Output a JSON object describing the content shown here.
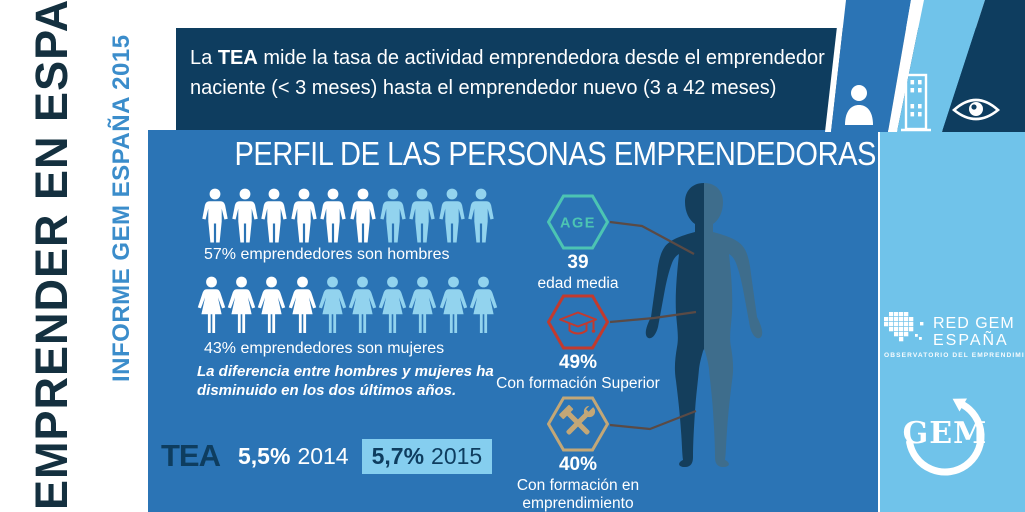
{
  "colors": {
    "navy": "#0e3d5f",
    "panel_blue": "#2b74b5",
    "sky": "#70c3ea",
    "pictogram_active": "#ffffff",
    "pictogram_inactive": "#92d3ee",
    "tea_box": "#85ceef",
    "title_ink": "#14303f",
    "subtitle_blue": "#3b8dcb",
    "connector": "#5a4a45",
    "body_left": "#143e5c",
    "body_right": "#3e6d8c",
    "white": "#ffffff"
  },
  "left_rail": {
    "title": "EMPRENDER EN ESPAÑA",
    "subtitle": "INFORME GEM ESPAÑA 2015"
  },
  "banner": {
    "line1_pre": "La ",
    "line1_bold": "TEA",
    "line1_rest": " mide la tasa de actividad emprendedora desde el emprendedor",
    "line2": "naciente (< 3 meses) hasta el emprendedor nuevo (3 a 42 meses)",
    "icons": [
      "person-bust-icon",
      "building-icon",
      "eye-icon"
    ]
  },
  "panel": {
    "title": "PERFIL DE LAS PERSONAS EMPRENDEDORAS",
    "men": {
      "label": "57% emprendedores son hombres",
      "total": 10,
      "highlighted": 6
    },
    "women": {
      "label": "43% emprendedores son mujeres",
      "total": 10,
      "highlighted": 4
    },
    "note_line1": "La diferencia entre hombres y mujeres ha",
    "note_line2": "disminuido en los dos últimos años.",
    "tea": {
      "label": "TEA",
      "value_2014": "5,5%",
      "year_2014": "2014",
      "value_2015": "5,7%",
      "year_2015": "2015"
    },
    "badges": [
      {
        "hex_label": "AGE",
        "value": "39",
        "caption": "edad media",
        "color": "#4cc4b3",
        "icon": "age-hexagon"
      },
      {
        "value": "49%",
        "caption": "Con formación Superior",
        "color": "#c23a2e",
        "icon": "graduation-cap-icon"
      },
      {
        "value": "40%",
        "caption": "Con formación en emprendimiento",
        "color": "#c3a777",
        "icon": "tools-icon"
      }
    ]
  },
  "sidebar": {
    "red_gem": {
      "line1": "RED GEM",
      "line2": "ESPAÑA",
      "tagline": "OBSERVATORIO DEL EMPRENDIMIENTO"
    },
    "gem": "GEM"
  }
}
